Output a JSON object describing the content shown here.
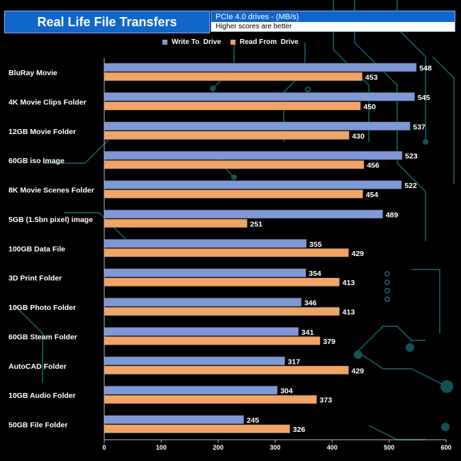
{
  "header": {
    "title": "Real Life File Transfers",
    "subtitle": "PCIe 4.0 drives - (MB/s)",
    "note": "Higher scores are better"
  },
  "colors": {
    "write": "#7f98d6",
    "read": "#f0a566",
    "accent": "#1166c9",
    "circuit": "#16555a"
  },
  "chart_data": {
    "type": "bar",
    "orientation": "horizontal",
    "title": "Real Life File Transfers",
    "subtitle": "PCIe 4.0 drives - (MB/s)",
    "note": "Higher scores are better",
    "categories": [
      "BluRay Movie",
      "4K Movie Clips Folder",
      "12GB Movie Folder",
      "60GB iso Image",
      "8K Movie Scenes Folder",
      "5GB (1.5bn pixel) image",
      "100GB Data File",
      "3D Print Folder",
      "10GB Photo Folder",
      "60GB Steam Folder",
      "AutoCAD Folder",
      "10GB Audio Folder",
      "50GB File Folder"
    ],
    "series": [
      {
        "name": "Write To  Drive",
        "values": [
          548,
          545,
          537,
          523,
          522,
          489,
          355,
          354,
          346,
          341,
          317,
          304,
          245
        ]
      },
      {
        "name": "Read From  Drive",
        "values": [
          453,
          450,
          430,
          456,
          454,
          251,
          429,
          413,
          413,
          379,
          429,
          373,
          326
        ]
      }
    ],
    "xlim": [
      0,
      600
    ],
    "xticks": [
      0,
      100,
      200,
      300,
      400,
      500,
      600
    ],
    "legend_position": "top-center",
    "grid": false
  }
}
